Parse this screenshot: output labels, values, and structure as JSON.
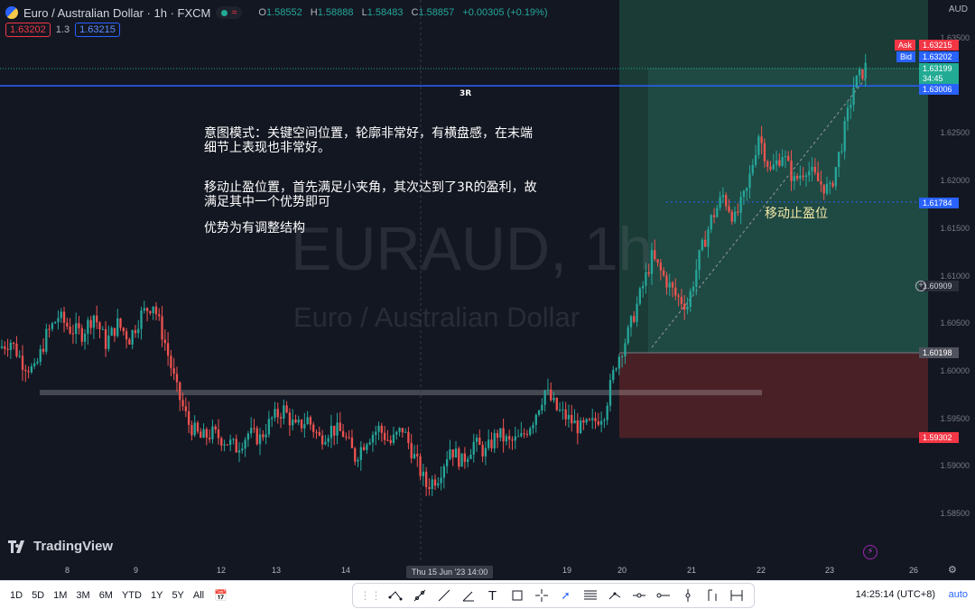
{
  "legend": {
    "symbol": "Euro / Australian Dollar · 1h · FXCM",
    "open_k": "O",
    "open": "1.58552",
    "high_k": "H",
    "high": "1.58888",
    "low_k": "L",
    "low": "1.58483",
    "close_k": "C",
    "close": "1.58857",
    "change": "+0.00305 (+0.19%)"
  },
  "quote": {
    "sell": "1.63202",
    "spread": "1.3",
    "buy": "1.63215"
  },
  "currency": "AUD",
  "price_axis": [
    "1.63500",
    "1.62500",
    "1.62000",
    "1.61500",
    "1.61000",
    "1.60500",
    "1.60000",
    "1.59500",
    "1.59000",
    "1.58500"
  ],
  "price_tags": {
    "ask_label": "Ask",
    "ask": "1.63215",
    "bid_label": "Bid",
    "bid": "1.63202",
    "last": "1.63199",
    "countdown": "34:45",
    "target": "1.63006",
    "stop_trail": "1.61784",
    "crosshair": "1.60909",
    "entry": "1.60198",
    "stop": "1.59302"
  },
  "time_axis": {
    "labels": [
      "8",
      "9",
      "12",
      "13",
      "14",
      "19",
      "20",
      "21",
      "22",
      "23",
      "26"
    ],
    "pill": "Thu 15 Jun '23   14:00"
  },
  "annotations": {
    "rr_label": "3R",
    "line1": "意图模式：关键空间位置，轮廓非常好，有横盘感，在末端",
    "line2": "细节上表现也非常好。",
    "line3": "移动止盈位置，首先满足小夹角，其次达到了3R的盈利，故",
    "line4": "满足其中一个优势即可",
    "line5": "优势为有调整结构",
    "trail_label": "移动止盈位"
  },
  "watermark": {
    "title": "EURAUD, 1h",
    "subtitle": "Euro / Australian Dollar"
  },
  "logo": "TradingView",
  "bottom": {
    "timeframes": [
      "1D",
      "5D",
      "1M",
      "3M",
      "6M",
      "YTD",
      "1Y",
      "5Y",
      "All"
    ],
    "clock": "14:25:14 (UTC+8)",
    "auto": "auto"
  },
  "colors": {
    "up": "#26a69a",
    "down": "#ef5350",
    "target_zone": "#1f4a43",
    "stop_zone": "#4a2027",
    "level_line": "#2962ff"
  },
  "chart_data": {
    "type": "candlestick",
    "title": "EURAUD, 1h",
    "ylabel": "AUD",
    "ylim": [
      1.582,
      1.6372
    ],
    "x_labels": [
      "8",
      "9",
      "12",
      "13",
      "14",
      "15 Jun 14:00",
      "19",
      "20",
      "21",
      "22",
      "23",
      "26"
    ],
    "levels": {
      "target": 1.63006,
      "entry": 1.60198,
      "stop": 1.59302,
      "trailing_stop": 1.61784,
      "support": 1.5978
    },
    "path_closes": [
      1.6025,
      1.6032,
      1.601,
      1.6,
      1.6038,
      1.6058,
      1.6045,
      1.604,
      1.606,
      1.603,
      1.605,
      1.6035,
      1.606,
      1.6072,
      1.603,
      1.598,
      1.5945,
      1.593,
      1.5935,
      1.5928,
      1.592,
      1.5935,
      1.593,
      1.595,
      1.596,
      1.594,
      1.595,
      1.593,
      1.594,
      1.5935,
      1.591,
      1.593,
      1.594,
      1.5925,
      1.594,
      1.591,
      1.588,
      1.589,
      1.592,
      1.5905,
      1.5925,
      1.5915,
      1.5935,
      1.5925,
      1.593,
      1.595,
      1.598,
      1.596,
      1.595,
      1.594,
      1.5945,
      1.5958,
      1.601,
      1.604,
      1.608,
      1.612,
      1.61,
      1.608,
      1.607,
      1.612,
      1.616,
      1.6185,
      1.616,
      1.619,
      1.625,
      1.621,
      1.623,
      1.62,
      1.6215,
      1.62,
      1.619,
      1.624,
      1.63,
      1.632
    ]
  }
}
